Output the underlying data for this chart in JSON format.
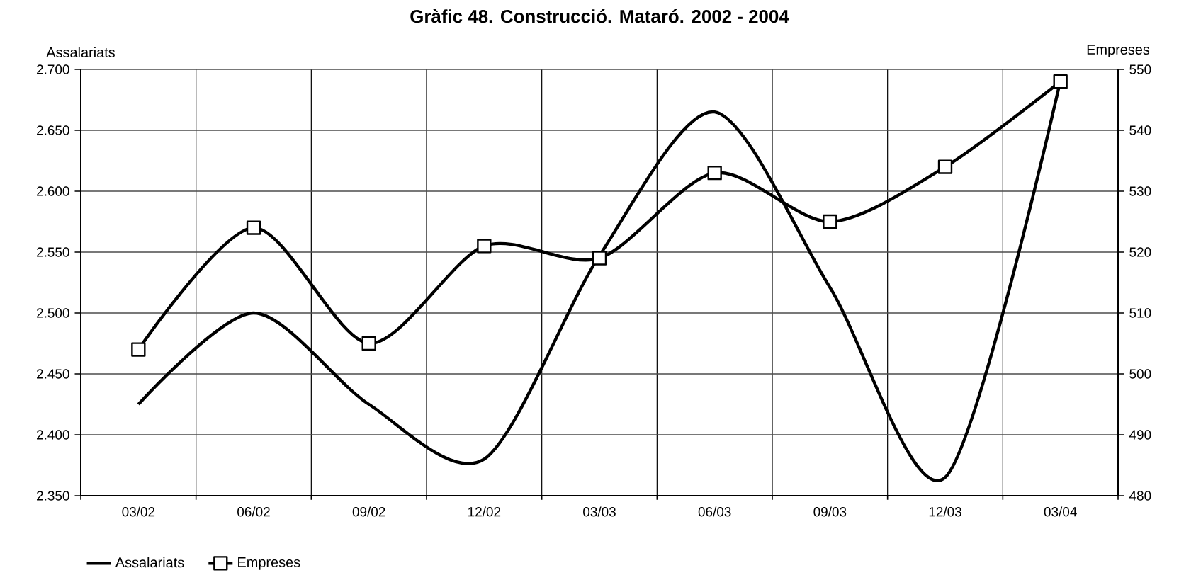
{
  "chart_data": {
    "type": "line",
    "title": "Gràfic 48. Construcció. Mataró. 2002 - 2004",
    "ylabel": "Assalariats",
    "y2label": "Empreses",
    "categories": [
      "03/02",
      "06/02",
      "09/02",
      "12/02",
      "03/03",
      "06/03",
      "09/03",
      "12/03",
      "03/04"
    ],
    "series": [
      {
        "name": "Assalariats",
        "color": "#000000",
        "marker": "none",
        "values": [
          2425,
          2500,
          2425,
          2380,
          2547,
          2665,
          2521,
          2365,
          2691
        ]
      },
      {
        "name": "Empreses",
        "color": "#000000",
        "marker": "square",
        "axis": "y2",
        "values": [
          504,
          524,
          505,
          521,
          519,
          533,
          525,
          534,
          548
        ]
      }
    ],
    "ylim": [
      2350,
      2700
    ],
    "yticks": [
      {
        "value": 2350,
        "label": "2.350"
      },
      {
        "value": 2400,
        "label": "2.400"
      },
      {
        "value": 2450,
        "label": "2.450"
      },
      {
        "value": 2500,
        "label": "2.500"
      },
      {
        "value": 2550,
        "label": "2.550"
      },
      {
        "value": 2600,
        "label": "2.600"
      },
      {
        "value": 2650,
        "label": "2.650"
      },
      {
        "value": 2700,
        "label": "2.700"
      }
    ],
    "y2lim": [
      480,
      550
    ],
    "y2ticks": [
      480,
      490,
      500,
      510,
      520,
      530,
      540,
      550
    ],
    "grid": true,
    "legend": "bottom left",
    "line_style": "solid"
  }
}
